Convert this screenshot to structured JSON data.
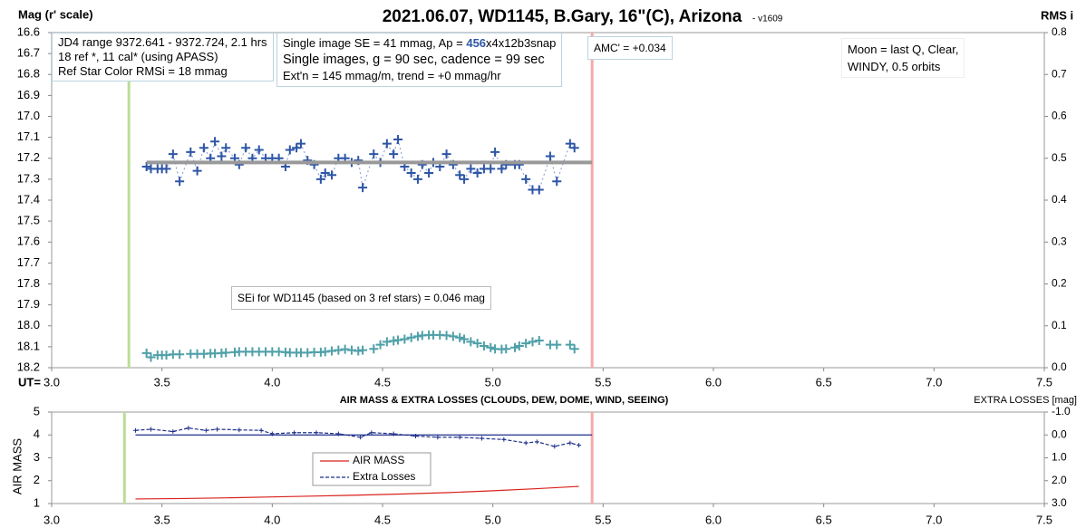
{
  "chart_data": [
    {
      "type": "scatter",
      "title": "2021.06.07, WD1145, B.Gary, 16\"(C), Arizona",
      "subtitle": "- v1609",
      "y_label": "Mag (r' scale)",
      "y2_label": "RMS i",
      "x_label": "UT=",
      "xlim": [
        3,
        7.5
      ],
      "xticks": [
        {
          "value": 3,
          "label": "3.0"
        },
        3.5,
        {
          "value": 4,
          "label": "4.0"
        },
        4.5,
        {
          "value": 5,
          "label": "5.0"
        },
        5.5,
        {
          "value": 6,
          "label": "6.0"
        },
        6.5,
        {
          "value": 7,
          "label": "7.0"
        },
        7.5
      ],
      "ylim": [
        16.6,
        18.2
      ],
      "y_inverted": true,
      "yticks": [
        16.6,
        16.7,
        16.8,
        16.9,
        {
          "value": 17,
          "label": "17.0"
        },
        17.1,
        17.2,
        17.3,
        17.4,
        17.5,
        17.6,
        17.7,
        17.8,
        17.9,
        {
          "value": 18,
          "label": "18.0"
        },
        18.1,
        18.2
      ],
      "y2lim": [
        0,
        0.8
      ],
      "y2ticks": [
        {
          "value": 0,
          "label": "0.0"
        },
        0.1,
        0.2,
        0.3,
        0.4,
        0.5,
        0.6,
        0.7,
        0.8
      ],
      "x": [
        3.43,
        3.45,
        3.48,
        3.5,
        3.52,
        3.55,
        3.58,
        3.63,
        3.66,
        3.69,
        3.72,
        3.74,
        3.77,
        3.79,
        3.83,
        3.85,
        3.88,
        3.91,
        3.94,
        3.97,
        4.0,
        4.03,
        4.06,
        4.08,
        4.11,
        4.13,
        4.16,
        4.19,
        4.22,
        4.24,
        4.27,
        4.3,
        4.33,
        4.36,
        4.39,
        4.41,
        4.46,
        4.49,
        4.52,
        4.55,
        4.57,
        4.6,
        4.63,
        4.66,
        4.68,
        4.71,
        4.73,
        4.76,
        4.79,
        4.82,
        4.85,
        4.87,
        4.9,
        4.93,
        4.96,
        4.99,
        5.01,
        5.04,
        5.06,
        5.1,
        5.12,
        5.15,
        5.18,
        5.21,
        5.26,
        5.29,
        5.35,
        5.37
      ],
      "series": [
        {
          "color": "#2e56a6",
          "marker": "+",
          "line": "dotted",
          "values": [
            17.24,
            17.25,
            17.25,
            17.25,
            17.25,
            17.18,
            17.31,
            17.17,
            17.26,
            17.15,
            17.2,
            17.12,
            17.19,
            17.15,
            17.2,
            17.23,
            17.15,
            17.2,
            17.16,
            17.2,
            17.2,
            17.2,
            17.24,
            17.16,
            17.15,
            17.13,
            17.21,
            17.23,
            17.3,
            17.27,
            17.28,
            17.2,
            17.2,
            17.22,
            17.21,
            17.34,
            17.18,
            17.22,
            17.13,
            17.18,
            17.11,
            17.24,
            17.27,
            17.3,
            17.23,
            17.27,
            17.22,
            17.24,
            17.18,
            17.23,
            17.28,
            17.3,
            17.25,
            17.27,
            17.25,
            17.25,
            17.17,
            17.25,
            17.23,
            17.23,
            17.23,
            17.3,
            17.35,
            17.35,
            17.19,
            17.31,
            17.13,
            17.15
          ]
        },
        {
          "color": "#4fa0a8",
          "marker": "+",
          "axis": "y2",
          "values": [
            0.035,
            0.025,
            0.03,
            0.03,
            0.03,
            0.032,
            0.032,
            0.033,
            0.033,
            0.033,
            0.034,
            0.034,
            0.035,
            0.036,
            0.037,
            0.038,
            0.038,
            0.038,
            0.038,
            0.038,
            0.038,
            0.038,
            0.037,
            0.036,
            0.036,
            0.036,
            0.036,
            0.037,
            0.037,
            0.038,
            0.04,
            0.042,
            0.044,
            0.042,
            0.04,
            0.042,
            0.045,
            0.055,
            0.062,
            0.064,
            0.066,
            0.068,
            0.072,
            0.075,
            0.077,
            0.078,
            0.078,
            0.078,
            0.077,
            0.075,
            0.072,
            0.068,
            0.062,
            0.058,
            0.052,
            0.048,
            0.045,
            0.044,
            0.045,
            0.048,
            0.052,
            0.058,
            0.062,
            0.065,
            0.055,
            0.055,
            0.055,
            0.045
          ]
        },
        {
          "color": "#999999",
          "line": "solid",
          "width": 4,
          "x": [
            3.43,
            5.45
          ],
          "values": [
            17.22,
            17.22
          ]
        }
      ],
      "vlines": [
        {
          "value": 3.35,
          "color": "#b9de95"
        },
        {
          "value": 5.45,
          "color": "#f5a9a9"
        }
      ],
      "annotations": {
        "info": [
          "JD4 range 9372.641 - 9372.724, 2.1 hrs",
          "18 ref *, 11 cal* (using APASS)",
          "Ref Star Color RMSi = 18 mmag"
        ],
        "image": {
          "se": "Single image SE = 41 mmag, Ap = ",
          "aperture": "456",
          "aperture_rest": "x4x12b3snap",
          "cadence": "Single images, g = 90 sec, cadence = 99 sec",
          "extinction": "Ext'n = 145 mmag/m, trend = +0 mmag/hr"
        },
        "amc": "AMC' = +0.034",
        "moon": [
          "Moon = last Q, Clear,",
          "WINDY, 0.5 orbits"
        ],
        "sei": "SEi for WD1145 (based on 3 ref stars) = 0.046 mag"
      }
    },
    {
      "type": "line",
      "title": "AIR MASS & EXTRA LOSSES (CLOUDS, DEW, DOME, WIND, SEEING)",
      "y_label": "AIR MASS",
      "y2_label": "EXTRA LOSSES [mag]",
      "xlim": [
        3,
        7.5
      ],
      "xticks": [
        {
          "value": 3,
          "label": "3.0"
        },
        3.5,
        {
          "value": 4,
          "label": "4.0"
        },
        4.5,
        {
          "value": 5,
          "label": "5.0"
        },
        5.5,
        {
          "value": 6,
          "label": "6.0"
        },
        6.5,
        {
          "value": 7,
          "label": "7.0"
        },
        7.5
      ],
      "ylim": [
        1,
        5
      ],
      "yticks": [
        1,
        2,
        3,
        4,
        5
      ],
      "y2lim": [
        -1,
        3
      ],
      "y2_inverted": true,
      "y2ticks": [
        {
          "value": -1,
          "label": "-1.0"
        },
        {
          "value": 0,
          "label": "0.0"
        },
        {
          "value": 1,
          "label": "1.0"
        },
        {
          "value": 2,
          "label": "2.0"
        },
        {
          "value": 3,
          "label": "3.0"
        }
      ],
      "series": [
        {
          "name": "AIR MASS",
          "color": "#d9221c",
          "line": "solid",
          "x": [
            3.38,
            3.6,
            3.8,
            4.0,
            4.2,
            4.4,
            4.6,
            4.8,
            5.0,
            5.2,
            5.39
          ],
          "values": [
            1.2,
            1.22,
            1.25,
            1.29,
            1.33,
            1.37,
            1.42,
            1.48,
            1.56,
            1.65,
            1.75
          ]
        },
        {
          "name": "Extra Losses",
          "color": "#1f2f8a",
          "line": "dashed",
          "marker": "+",
          "axis": "y2",
          "x": [
            3.38,
            3.45,
            3.55,
            3.62,
            3.7,
            3.75,
            3.85,
            3.95,
            4.0,
            4.1,
            4.2,
            4.3,
            4.4,
            4.45,
            4.55,
            4.65,
            4.75,
            4.85,
            4.95,
            5.05,
            5.15,
            5.2,
            5.28,
            5.35,
            5.39
          ],
          "values": [
            -0.2,
            -0.25,
            -0.15,
            -0.3,
            -0.2,
            -0.25,
            -0.22,
            -0.2,
            -0.05,
            -0.1,
            -0.1,
            -0.05,
            0.1,
            -0.1,
            -0.05,
            0.05,
            0.1,
            0.1,
            0.15,
            0.2,
            0.35,
            0.3,
            0.5,
            0.35,
            0.45
          ]
        }
      ],
      "hline": {
        "value": 0,
        "axis": "y2",
        "x": [
          3.38,
          5.45
        ],
        "color": "#1f2f8a"
      },
      "vlines": [
        {
          "value": 3.33,
          "color": "#b9de95"
        },
        {
          "value": 5.45,
          "color": "#f5a9a9"
        }
      ]
    }
  ]
}
